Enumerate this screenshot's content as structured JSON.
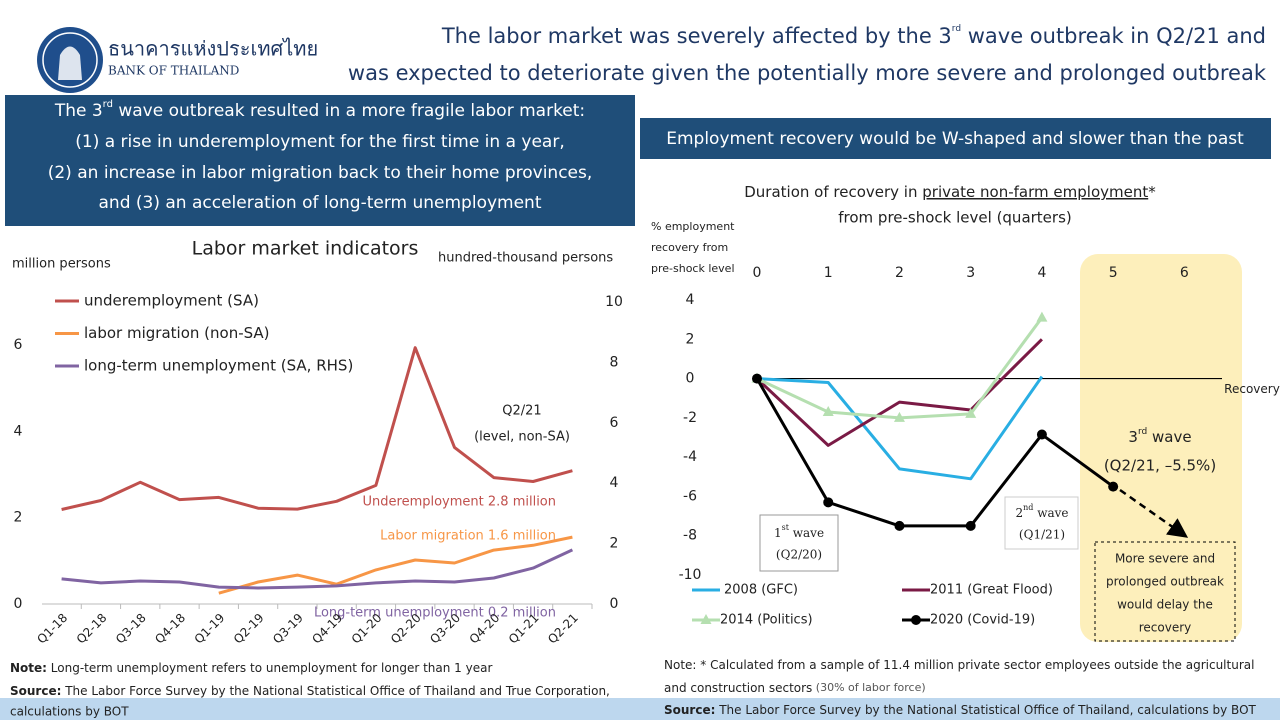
{
  "header": {
    "logo_thai": "ธนาคารแห่งประเทศไทย",
    "logo_en": "BANK OF THAILAND",
    "title": [
      [
        "The labor market was severely affected by the 3",
        "rd",
        " wave outbreak in Q2/21 and"
      ],
      [
        "was expected to deteriorate given the potentially more severe and prolonged outbreak"
      ]
    ]
  },
  "left_box": {
    "lines": [
      [
        "The 3",
        "rd",
        " wave outbreak resulted in a more fragile labor market:"
      ],
      [
        "(1) a rise in underemployment for the first time in a year,"
      ],
      [
        "(2) an increase in labor migration back to their home provinces,"
      ],
      [
        "and (3) an acceleration of long-term unemployment"
      ]
    ]
  },
  "right_box": {
    "title": "Employment recovery would be W-shaped and slower than the past"
  },
  "chart_data": [
    {
      "type": "line",
      "title": "Labor market indicators",
      "y_label": "million persons",
      "y2_label": "hundred-thousand persons",
      "categories": [
        "Q1-18",
        "Q2-18",
        "Q3-18",
        "Q4-18",
        "Q1-19",
        "Q2-19",
        "Q3-19",
        "Q4-19",
        "Q1-20",
        "Q2-20",
        "Q3-20",
        "Q4-20",
        "Q1-21",
        "Q2-21"
      ],
      "ylim": [
        0,
        7
      ],
      "yticks": [
        0,
        2,
        4,
        6
      ],
      "y2lim": [
        0,
        10
      ],
      "y2ticks": [
        0,
        2,
        4,
        6,
        8,
        10
      ],
      "legend": "upper left",
      "series": [
        {
          "name": "underemployment (SA)",
          "color": "#c0504d",
          "values": [
            2.19,
            2.4,
            2.82,
            2.42,
            2.47,
            2.22,
            2.2,
            2.38,
            2.75,
            5.94,
            3.63,
            2.93,
            2.84,
            3.09
          ]
        },
        {
          "name": "labor migration (non-SA)",
          "color": "#f79646",
          "values": [
            null,
            null,
            null,
            null,
            0.25,
            0.51,
            0.67,
            0.46,
            0.79,
            1.02,
            0.95,
            1.25,
            1.36,
            1.55
          ]
        },
        {
          "name": "long-term unemployment (SA, RHS)",
          "color": "#8064a2",
          "axis": "y2",
          "values": [
            0.83,
            0.7,
            0.76,
            0.73,
            0.56,
            0.53,
            0.56,
            0.6,
            0.7,
            0.76,
            0.73,
            0.86,
            1.19,
            1.79
          ]
        }
      ],
      "annotations": [
        {
          "text": "Q2/21"
        },
        {
          "text": "(level, non-SA)"
        },
        {
          "text": "Underemployment  2.8 million",
          "color": "#c0504d"
        },
        {
          "text": "Labor migration 1.6 million",
          "color": "#f79646"
        },
        {
          "text": "Long-term unemployment 0.2 million",
          "color": "#8064a2"
        }
      ]
    },
    {
      "type": "line",
      "title": [
        "Duration of recovery in ",
        "private non-farm employment",
        "*"
      ],
      "subtitle": "from pre-shock level (quarters)",
      "y_label": [
        "% employment",
        "recovery from",
        "pre-shock level"
      ],
      "x": [
        0,
        1,
        2,
        3,
        4,
        5,
        6
      ],
      "xlim": [
        0,
        6.5
      ],
      "xticks": [
        0,
        1,
        2,
        3,
        4,
        5,
        6
      ],
      "ylim": [
        -10,
        4
      ],
      "yticks": [
        4,
        2,
        0,
        -2,
        -4,
        -6,
        -8,
        -10
      ],
      "reference_line": {
        "value": 0,
        "label": "Recovery"
      },
      "legend": "lower",
      "series": [
        {
          "name": "2008 (GFC)",
          "color": "#29aee3",
          "values": [
            0,
            -0.2,
            -4.6,
            -5.1,
            0.1,
            null,
            null
          ]
        },
        {
          "name": "2011 (Great Flood)",
          "color": "#7a1a45",
          "values": [
            0,
            -3.4,
            -1.2,
            -1.6,
            2.0,
            null,
            null
          ]
        },
        {
          "name": "2014 (Politics)",
          "color": "#b5dfb0",
          "marker": "triangle",
          "values": [
            0,
            -1.7,
            -2.0,
            -1.8,
            3.1,
            null,
            null
          ]
        },
        {
          "name": "2020 (Covid-19)",
          "color": "#000000",
          "marker": "circle",
          "values": [
            0,
            -6.3,
            -7.5,
            -7.5,
            -2.85,
            -5.5,
            null
          ]
        }
      ],
      "annotations": [
        {
          "text": [
            "3",
            "rd",
            " wave"
          ]
        },
        {
          "text": "(Q2/21, –5.5%)"
        },
        {
          "text": [
            "1",
            "st",
            " wave"
          ]
        },
        {
          "text": "(Q2/20)"
        },
        {
          "text": [
            "2",
            "nd",
            " wave"
          ]
        },
        {
          "text": "(Q1/21)"
        },
        {
          "text": [
            "More severe and",
            "prolonged outbreak",
            "would delay the",
            "recovery"
          ]
        }
      ]
    }
  ],
  "notes": {
    "left": [
      [
        "Note:",
        " Long-term unemployment refers to unemployment for longer than 1 year"
      ],
      [
        "Source:",
        " The Labor Force Survey by the National Statistical Office of Thailand and True Corporation,"
      ],
      [
        "calculations by BOT"
      ]
    ],
    "right": [
      [
        "Note:",
        " * Calculated from a sample of 11.4 million private sector employees outside the agricultural"
      ],
      [
        "and construction sectors",
        " (30% of labor force)"
      ],
      [
        "Source:",
        " The Labor Force Survey by the National Statistical Office of Thailand, calculations by BOT"
      ]
    ]
  }
}
